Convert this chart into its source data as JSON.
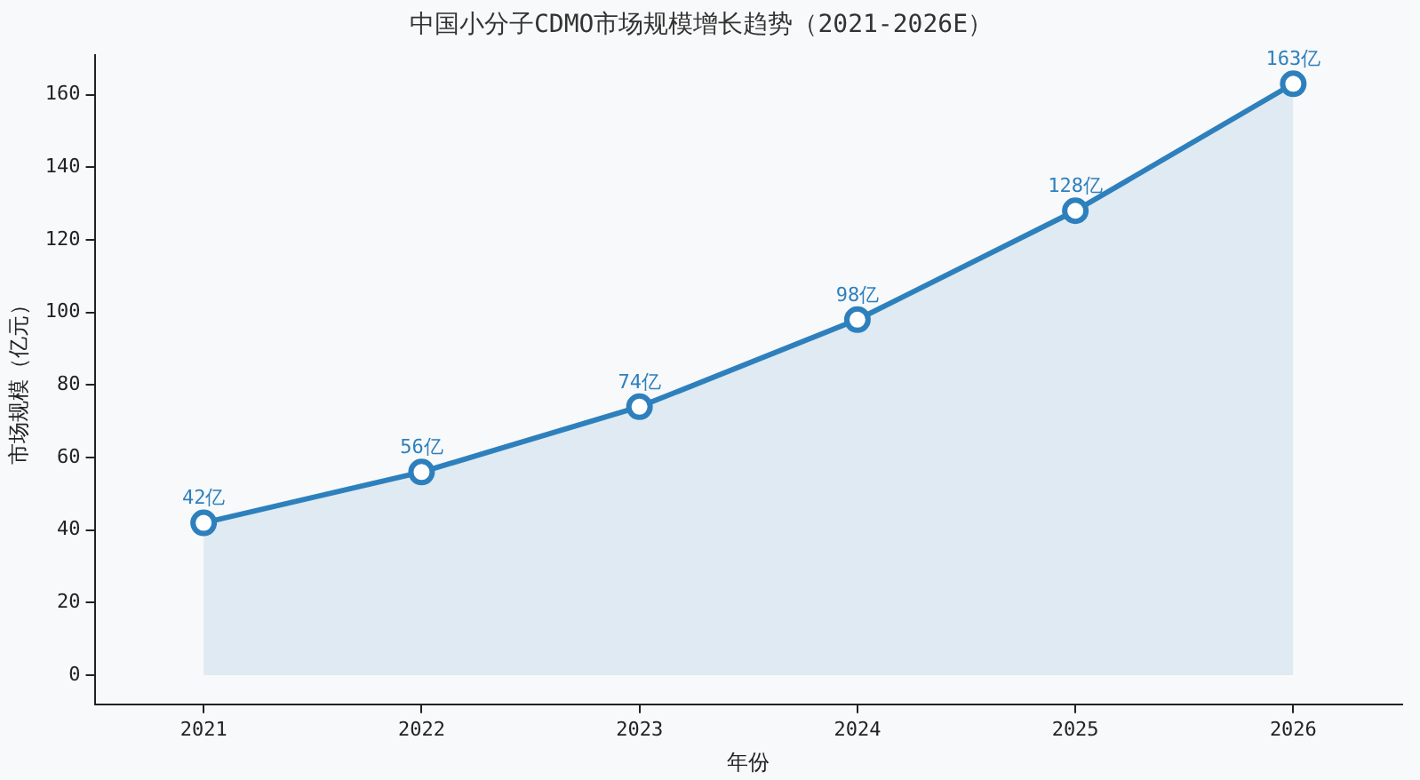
{
  "chart_data": {
    "type": "area",
    "title": "中国小分子CDMO市场规模增长趋势（2021-2026E）",
    "xlabel": "年份",
    "ylabel": "市场规模（亿元）",
    "categories": [
      "2021",
      "2022",
      "2023",
      "2024",
      "2025",
      "2026"
    ],
    "series": [
      {
        "color": "#2e80bd",
        "values": [
          42,
          56,
          74,
          98,
          128,
          163
        ],
        "value_labels": [
          "42亿",
          "56亿",
          "74亿",
          "98亿",
          "128亿",
          "163亿"
        ]
      }
    ],
    "ylim": [
      -8,
      171
    ],
    "yticks": [
      0,
      20,
      40,
      60,
      80,
      100,
      120,
      140,
      160
    ],
    "grid": false,
    "legend": false,
    "marker": "circle",
    "line_style": "solid"
  }
}
